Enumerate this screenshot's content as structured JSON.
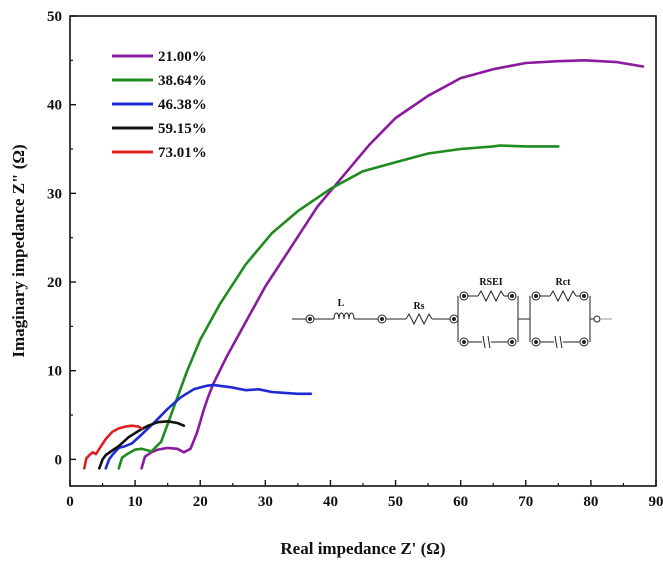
{
  "chart_data": {
    "type": "line",
    "title": "",
    "xlabel": "Real impedance Z' (Ω)",
    "ylabel": "Imaginary impedance Z\" (Ω)",
    "xlim": [
      0,
      90
    ],
    "ylim": [
      -3,
      50
    ],
    "xticks": [
      0,
      10,
      20,
      30,
      40,
      50,
      60,
      70,
      80,
      90
    ],
    "yticks": [
      0,
      10,
      20,
      30,
      40,
      50
    ],
    "grid": false,
    "legend_position": "top-left",
    "series": [
      {
        "name": "21.00%",
        "color": "#8a1a9e",
        "x": [
          11,
          11.5,
          12.5,
          13.5,
          15,
          16.5,
          17.5,
          18.5,
          19.5,
          20.5,
          21.2,
          22,
          24,
          27,
          30,
          34,
          38,
          42,
          46,
          50,
          55,
          60,
          65,
          70,
          75,
          79,
          84,
          88
        ],
        "y": [
          -1,
          0.3,
          0.8,
          1.1,
          1.3,
          1.2,
          0.8,
          1.2,
          3,
          5.5,
          7,
          8.5,
          11.5,
          15.5,
          19.5,
          24,
          28.5,
          32,
          35.5,
          38.5,
          41,
          43,
          44,
          44.7,
          44.9,
          45,
          44.8,
          44.3
        ]
      },
      {
        "name": "38.64%",
        "color": "#1e8c1e",
        "x": [
          7.5,
          8,
          9,
          10,
          11,
          12.5,
          14,
          16,
          18,
          20,
          23,
          27,
          31,
          35,
          40,
          45,
          50,
          55,
          60,
          65,
          66,
          70,
          75
        ],
        "y": [
          -1,
          0.2,
          0.7,
          1.1,
          1.2,
          0.9,
          2,
          6,
          10,
          13.5,
          17.5,
          22,
          25.5,
          28,
          30.5,
          32.5,
          33.5,
          34.5,
          35,
          35.3,
          35.4,
          35.3,
          35.3
        ]
      },
      {
        "name": "46.38%",
        "color": "#1f2ad1",
        "x": [
          5.5,
          6,
          6.5,
          7.5,
          8.5,
          9.5,
          11,
          13,
          15,
          17,
          19,
          21,
          22,
          23,
          25,
          27,
          29,
          31,
          33,
          35,
          37
        ],
        "y": [
          -1,
          0,
          0.5,
          1.3,
          1.5,
          1.8,
          2.8,
          4.2,
          5.7,
          7,
          7.9,
          8.3,
          8.4,
          8.3,
          8.1,
          7.8,
          7.9,
          7.6,
          7.5,
          7.4,
          7.4
        ]
      },
      {
        "name": "59.15%",
        "color": "#111111",
        "x": [
          4.5,
          5,
          5.5,
          6.5,
          7.5,
          9,
          10.5,
          12,
          13.5,
          15,
          16.5,
          17.5
        ],
        "y": [
          -1,
          0,
          0.5,
          1,
          1.5,
          2.5,
          3.2,
          3.8,
          4.2,
          4.3,
          4.1,
          3.8
        ]
      },
      {
        "name": "73.01%",
        "color": "#e02020",
        "x": [
          2.2,
          2.5,
          3,
          3.5,
          4,
          4.5,
          5.5,
          6.5,
          7.5,
          8.5,
          9.5,
          10.5,
          11
        ],
        "y": [
          -1,
          0.1,
          0.5,
          0.8,
          0.6,
          1.2,
          2.3,
          3.1,
          3.5,
          3.7,
          3.8,
          3.7,
          3.5
        ]
      }
    ],
    "inset": {
      "type": "equivalent-circuit",
      "labels": [
        "L",
        "Rs",
        "RSEI",
        "Rct"
      ]
    }
  }
}
